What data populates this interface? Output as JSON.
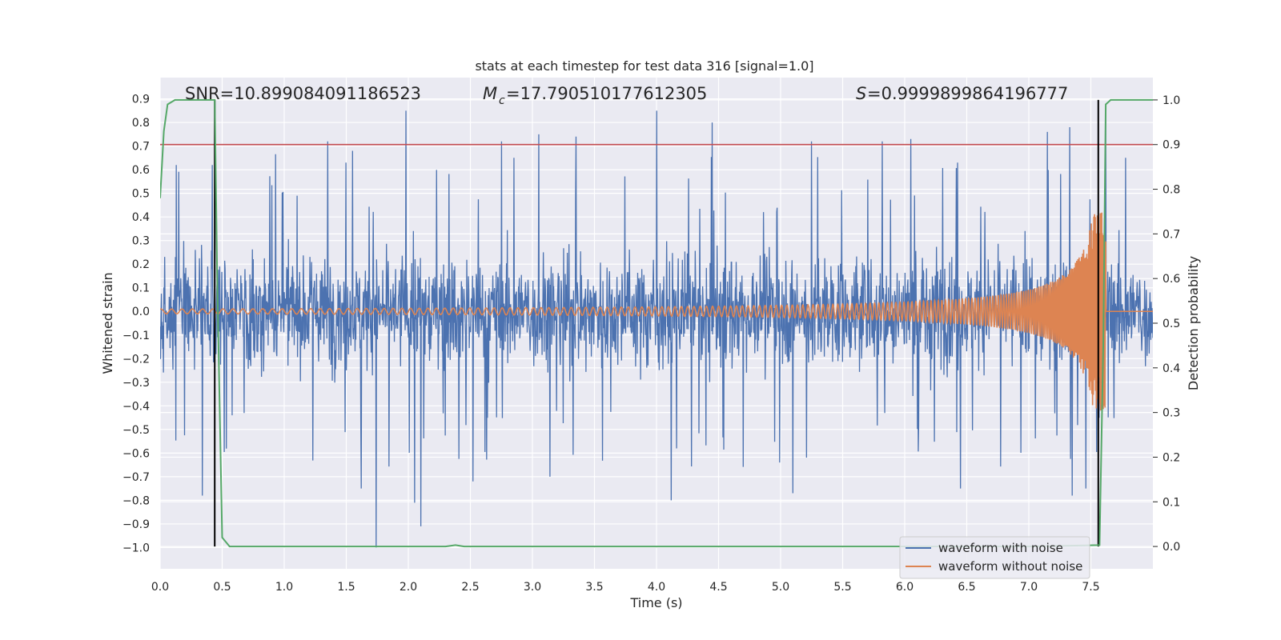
{
  "chart_data": {
    "type": "line",
    "title": "stats at each timestep for test data 316 [signal=1.0]",
    "xlabel": "Time (s)",
    "ylabel": "Whitened strain",
    "y2label": "Detection probability",
    "xlim": [
      0.0,
      8.0
    ],
    "ylim": [
      -1.09,
      0.99
    ],
    "y2lim": [
      -0.05,
      1.05
    ],
    "xticks": [
      "0.0",
      "0.5",
      "1.0",
      "1.5",
      "2.0",
      "2.5",
      "3.0",
      "3.5",
      "4.0",
      "4.5",
      "5.0",
      "5.5",
      "6.0",
      "6.5",
      "7.0",
      "7.5"
    ],
    "yticks": [
      "0.9",
      "0.8",
      "0.7",
      "0.6",
      "0.5",
      "0.4",
      "0.3",
      "0.2",
      "0.1",
      "0.0",
      "−0.1",
      "−0.2",
      "−0.3",
      "−0.4",
      "−0.5",
      "−0.6",
      "−0.7",
      "−0.8",
      "−0.9",
      "−1.0"
    ],
    "y2ticks": [
      "1.0",
      "0.9",
      "0.8",
      "0.7",
      "0.6",
      "0.5",
      "0.4",
      "0.3",
      "0.2",
      "0.1",
      "0.0"
    ],
    "grid": true,
    "legend_position": "bottom-right",
    "stats": {
      "snr": "SNR=10.899084091186523",
      "mc": "=17.790510177612305",
      "s": "=0.9999899864196777"
    },
    "threshold_prob": 0.9,
    "event_lines_x": [
      0.44,
      7.56
    ],
    "noise_envelope": {
      "typical_max": 0.4,
      "typical_min": -0.4,
      "peaks": [
        {
          "x": 0.42,
          "y": 0.62
        },
        {
          "x": 0.13,
          "y": 0.62
        },
        {
          "x": 1.35,
          "y": 0.72
        },
        {
          "x": 1.55,
          "y": 0.68
        },
        {
          "x": 1.98,
          "y": 0.85
        },
        {
          "x": 2.75,
          "y": 0.72
        },
        {
          "x": 3.05,
          "y": 0.75
        },
        {
          "x": 3.35,
          "y": 0.74
        },
        {
          "x": 4.0,
          "y": 0.85
        },
        {
          "x": 4.12,
          "y": 0.77
        },
        {
          "x": 4.45,
          "y": 0.8
        },
        {
          "x": 5.25,
          "y": 0.72
        },
        {
          "x": 5.82,
          "y": 0.72
        },
        {
          "x": 6.05,
          "y": 0.73
        },
        {
          "x": 7.15,
          "y": 0.76
        },
        {
          "x": 7.33,
          "y": 0.78
        },
        {
          "x": 7.62,
          "y": 0.86
        }
      ],
      "troughs": [
        {
          "x": 0.34,
          "y": -0.78
        },
        {
          "x": 1.74,
          "y": -1.0
        },
        {
          "x": 2.1,
          "y": -0.91
        },
        {
          "x": 2.05,
          "y": -0.81
        },
        {
          "x": 1.62,
          "y": -0.75
        },
        {
          "x": 2.52,
          "y": -0.72
        },
        {
          "x": 3.14,
          "y": -0.7
        },
        {
          "x": 4.12,
          "y": -0.8
        },
        {
          "x": 5.1,
          "y": -0.77
        },
        {
          "x": 6.45,
          "y": -0.75
        },
        {
          "x": 7.35,
          "y": -0.78
        },
        {
          "x": 7.46,
          "y": -0.75
        }
      ]
    },
    "series": [
      {
        "name": "waveform with noise",
        "color": "#4c72b0",
        "axis": "left"
      },
      {
        "name": "waveform without noise",
        "color": "#dd8452",
        "axis": "left",
        "chirp": {
          "t_start": 0.0,
          "t_merge": 7.62,
          "amp_start": 0.01,
          "amp_peak": 0.42
        }
      },
      {
        "name": "detection probability",
        "color": "#55a868",
        "axis": "right",
        "x": [
          0.0,
          0.03,
          0.06,
          0.12,
          0.3,
          0.44,
          0.46,
          0.5,
          0.56,
          1.0,
          2.0,
          2.3,
          2.38,
          2.45,
          3.0,
          7.0,
          7.57,
          7.6,
          7.62,
          7.66,
          8.0
        ],
        "y": [
          0.78,
          0.93,
          0.99,
          1.0,
          1.0,
          1.0,
          0.6,
          0.02,
          0.0,
          0.0,
          0.0,
          0.0,
          0.003,
          0.0,
          0.0,
          0.0,
          0.003,
          0.45,
          0.99,
          1.0,
          1.0
        ]
      },
      {
        "name": "threshold",
        "color": "#c44e52",
        "axis": "right"
      }
    ]
  }
}
